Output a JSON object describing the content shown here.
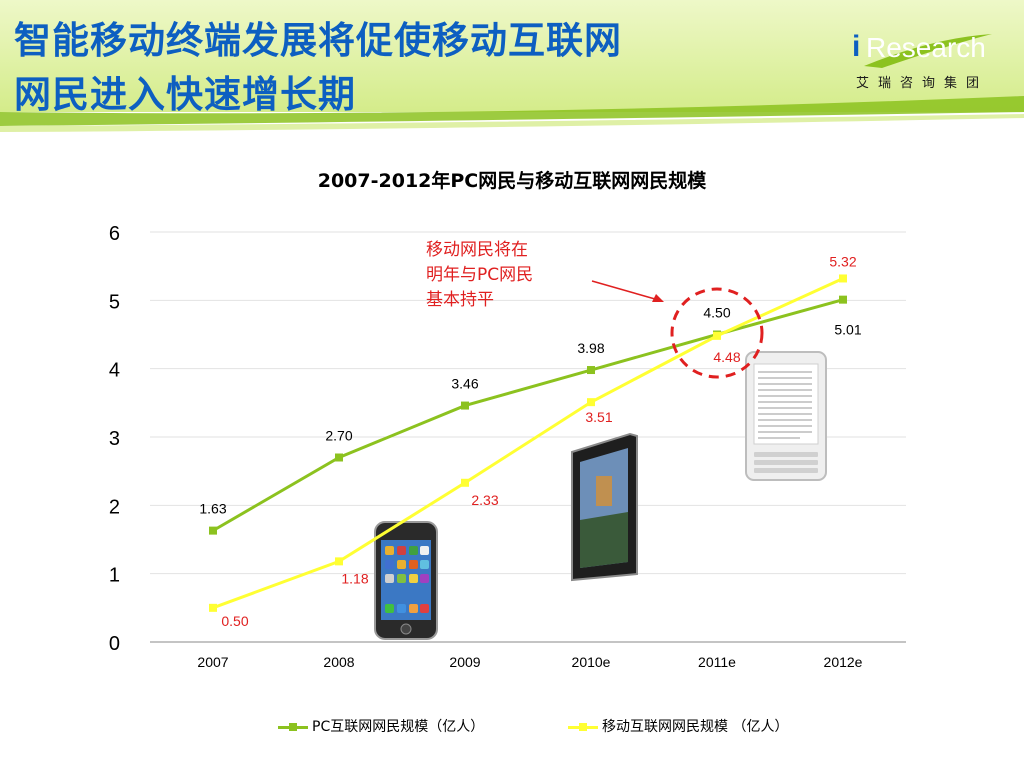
{
  "slide": {
    "title_line1": "智能移动终端发展将促使移动互联网",
    "title_line2": "网民进入快速增长期",
    "logo_i": "i",
    "logo_main": "Research",
    "logo_sub": "艾瑞咨询集团"
  },
  "annotation": {
    "line1": "移动网民将在",
    "line2": "明年与PC网民",
    "line3": "基本持平"
  },
  "colors": {
    "title": "#0d5fc1",
    "pc_series": "#8cc21f",
    "mobile_series": "#ffff33",
    "mobile_label": "#e02020",
    "header_green": "#c8e66a"
  },
  "images": [
    "iphone-image",
    "ipad-image",
    "kindle-image"
  ],
  "chart_data": {
    "type": "line",
    "title": "2007-2012年PC网民与移动互联网网民规模",
    "categories": [
      "2007",
      "2008",
      "2009",
      "2010e",
      "2011e",
      "2012e"
    ],
    "ylim": [
      0,
      6
    ],
    "yticks": [
      "0",
      "1",
      "2",
      "3",
      "4",
      "5",
      "6"
    ],
    "grid": true,
    "legend_position": "bottom",
    "series": [
      {
        "name": "PC互联网网民规模（亿人）",
        "values": [
          1.63,
          2.7,
          3.46,
          3.98,
          4.5,
          5.01
        ],
        "labels": [
          "1.63",
          "2.70",
          "3.46",
          "3.98",
          "4.50",
          "5.01"
        ]
      },
      {
        "name": "移动互联网网民规模 （亿人）",
        "values": [
          0.5,
          1.18,
          2.33,
          3.51,
          4.48,
          5.32
        ],
        "labels": [
          "0.50",
          "1.18",
          "2.33",
          "3.51",
          "4.48",
          "5.32"
        ]
      }
    ]
  }
}
